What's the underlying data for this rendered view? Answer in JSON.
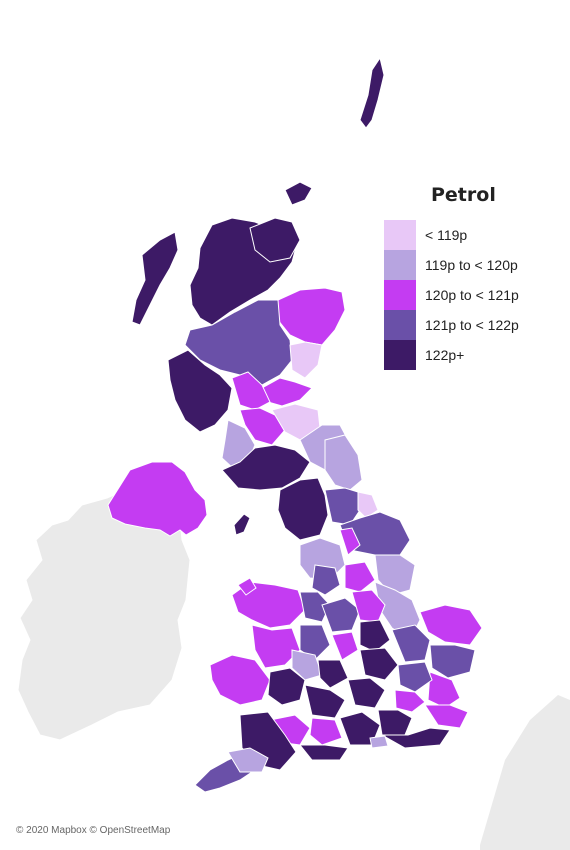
{
  "legend": {
    "title": "Petrol",
    "items": [
      {
        "label": "< 119p",
        "color": "#e8c8f7"
      },
      {
        "label": "119p to < 120p",
        "color": "#b7a4e0"
      },
      {
        "label": "120p to < 121p",
        "color": "#c43cf2"
      },
      {
        "label": "121p to < 122p",
        "color": "#6a50a8"
      },
      {
        "label": "122p+",
        "color": "#3d1a66"
      }
    ]
  },
  "background_land_color": "#eaeaea",
  "attribution": "© 2020 Mapbox © OpenStreetMap"
}
